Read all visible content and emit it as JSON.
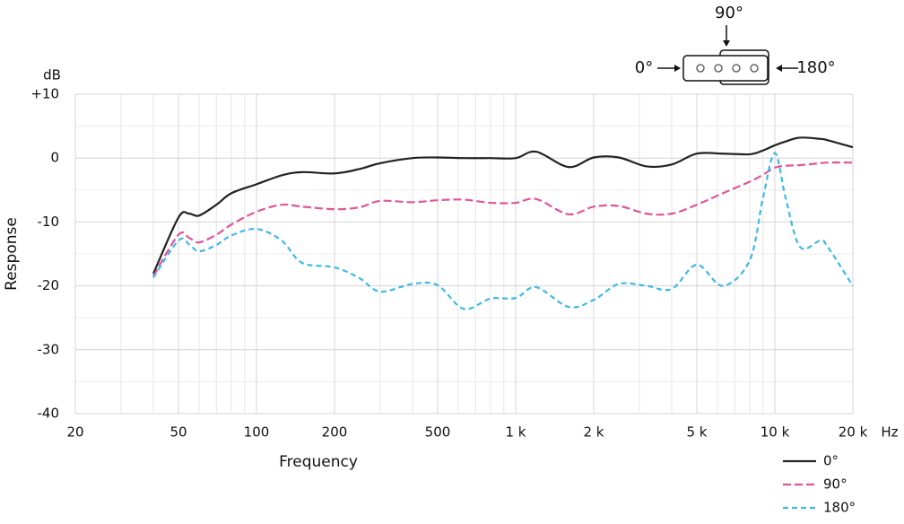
{
  "chart_data": {
    "type": "line",
    "x_label": "Frequency",
    "y_label": "Response",
    "x_unit": "Hz",
    "y_unit": "dB",
    "x": [
      40,
      50,
      55,
      60,
      70,
      80,
      100,
      125,
      150,
      200,
      250,
      300,
      400,
      500,
      630,
      800,
      1000,
      1200,
      1600,
      2000,
      2500,
      3200,
      4000,
      5000,
      6300,
      8000,
      9000,
      10000,
      11000,
      12500,
      15000,
      16000,
      20000
    ],
    "series": [
      {
        "name": "0°",
        "color": "#222222",
        "dash": "none",
        "values": [
          -18.1,
          -9.3,
          -8.7,
          -9,
          -7.3,
          -5.5,
          -4.1,
          -2.7,
          -2.2,
          -2.4,
          -1.7,
          -0.8,
          0,
          0.1,
          0,
          0,
          0,
          1.0,
          -1.4,
          0.1,
          0.1,
          -1.3,
          -1.0,
          0.7,
          0.7,
          0.6,
          1.2,
          2.0,
          2.6,
          3.2,
          3.0,
          2.8,
          1.7
        ]
      },
      {
        "name": "90°",
        "color": "#e0559a",
        "dash": "9 4",
        "values": [
          -18.5,
          -12,
          -12.5,
          -13.2,
          -12,
          -10.4,
          -8.4,
          -7.3,
          -7.6,
          -8,
          -7.7,
          -6.7,
          -6.9,
          -6.6,
          -6.5,
          -7,
          -7,
          -6.4,
          -8.8,
          -7.6,
          -7.5,
          -8.7,
          -8.7,
          -7.3,
          -5.5,
          -3.7,
          -2.6,
          -1.5,
          -1.2,
          -1.1,
          -0.8,
          -0.7,
          -0.7
        ]
      },
      {
        "name": "180°",
        "color": "#3fb8e8",
        "dash": "6 4",
        "values": [
          -18.7,
          -12.9,
          -13.5,
          -14.6,
          -13.6,
          -12.1,
          -11.1,
          -12.9,
          -16.4,
          -17.1,
          -18.8,
          -20.9,
          -19.7,
          -19.9,
          -23.6,
          -22,
          -21.9,
          -20.2,
          -23.3,
          -22.2,
          -19.7,
          -20,
          -20.5,
          -16.7,
          -20,
          -16,
          -6.2,
          0.8,
          -6.2,
          -13.9,
          -12.9,
          -13.9,
          -20
        ]
      }
    ],
    "xscale": "log",
    "xlim": [
      20,
      20000
    ],
    "ylim": [
      -40,
      10
    ],
    "xticks": [
      20,
      50,
      100,
      200,
      500,
      {
        "value": 1000,
        "label": "1 k"
      },
      {
        "value": 2000,
        "label": "2 k"
      },
      {
        "value": 5000,
        "label": "5 k"
      },
      {
        "value": 10000,
        "label": "10 k"
      },
      {
        "value": 20000,
        "label": "20 k"
      }
    ],
    "yticks": [
      -40,
      -30,
      -20,
      -10,
      0,
      {
        "value": 10,
        "label": "+10"
      }
    ],
    "x_minor_grid": [
      30,
      40,
      60,
      70,
      80,
      90,
      300,
      400,
      600,
      700,
      800,
      900,
      3000,
      4000,
      6000,
      7000,
      8000,
      9000
    ],
    "y_minor_grid": [
      -35,
      -25,
      -15,
      -5,
      5
    ],
    "grid": true,
    "legend": "lower right"
  },
  "diagram": {
    "top": "90°",
    "left": "0°",
    "right": "180°"
  }
}
